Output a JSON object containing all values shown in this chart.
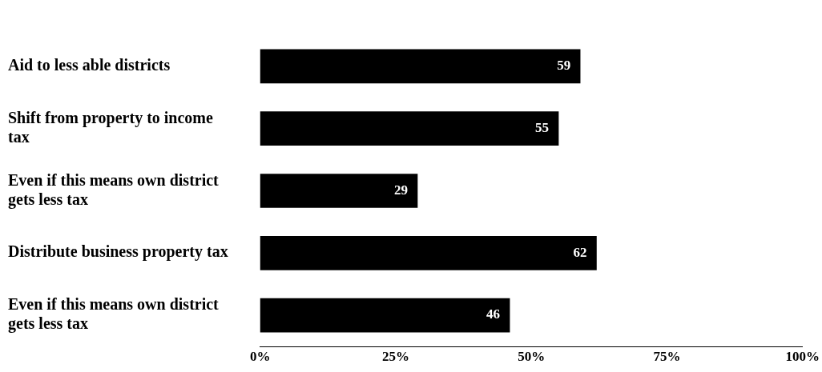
{
  "chart_data": {
    "type": "bar",
    "orientation": "horizontal",
    "categories": [
      "Aid to less able districts",
      "Shift from property to income tax",
      "Even if this means own district gets less tax",
      "Distribute business property tax",
      "Even if this means own district gets less tax"
    ],
    "values": [
      59,
      55,
      29,
      62,
      46
    ],
    "color": "#000000",
    "xlim": [
      0,
      100
    ],
    "xticks": [
      {
        "value": 0,
        "label": "0%"
      },
      {
        "value": 25,
        "label": "25%"
      },
      {
        "value": 50,
        "label": "50%"
      },
      {
        "value": 75,
        "label": "75%"
      },
      {
        "value": 100,
        "label": "100%"
      }
    ],
    "grid": false,
    "legend": false,
    "data_labels": true
  }
}
